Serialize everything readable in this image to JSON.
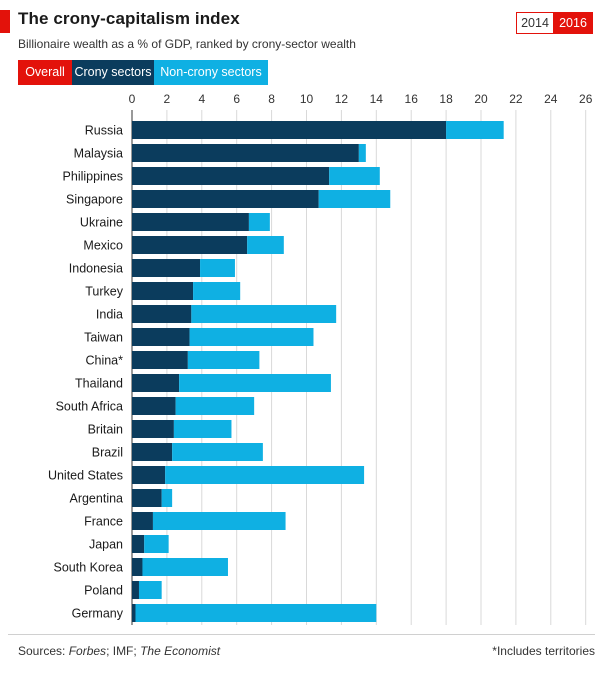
{
  "header": {
    "title": "The crony-capitalism index",
    "subtitle": "Billionaire wealth as a % of GDP, ranked by crony-sector wealth"
  },
  "year_toggle": {
    "options": [
      "2014",
      "2016"
    ],
    "selected": "2016"
  },
  "tabs": {
    "overall": "Overall",
    "crony": "Crony sectors",
    "noncrony": "Non-crony sectors"
  },
  "colors": {
    "accent": "#e3120b",
    "crony": "#0b3c5d",
    "noncrony": "#0fb0e3",
    "grid": "#d9d9d9"
  },
  "chart_data": {
    "type": "bar",
    "orientation": "horizontal",
    "stacked": true,
    "title": "The crony-capitalism index",
    "subtitle": "Billionaire wealth as a % of GDP, ranked by crony-sector wealth",
    "x_ticks": [
      "0",
      "2",
      "4",
      "6",
      "8",
      "10",
      "12",
      "14",
      "16",
      "18",
      "20",
      "22",
      "24",
      "26"
    ],
    "xlim": [
      0,
      26
    ],
    "grid": true,
    "categories": [
      "Russia",
      "Malaysia",
      "Philippines",
      "Singapore",
      "Ukraine",
      "Mexico",
      "Indonesia",
      "Turkey",
      "India",
      "Taiwan",
      "China*",
      "Thailand",
      "South Africa",
      "Britain",
      "Brazil",
      "United States",
      "Argentina",
      "France",
      "Japan",
      "South Korea",
      "Poland",
      "Germany"
    ],
    "series": [
      {
        "name": "Crony sectors",
        "values": [
          18.0,
          13.0,
          11.3,
          10.7,
          6.7,
          6.6,
          3.9,
          3.5,
          3.4,
          3.3,
          3.2,
          2.7,
          2.5,
          2.4,
          2.3,
          1.9,
          1.7,
          1.2,
          0.7,
          0.6,
          0.4,
          0.2
        ]
      },
      {
        "name": "Non-crony sectors",
        "values": [
          3.3,
          0.4,
          2.9,
          4.1,
          1.2,
          2.1,
          2.0,
          2.7,
          8.3,
          7.1,
          4.1,
          8.7,
          4.5,
          3.3,
          5.2,
          11.4,
          0.6,
          7.6,
          1.4,
          4.9,
          1.3,
          13.8
        ]
      }
    ]
  },
  "footer": {
    "sources_label": "Sources:",
    "source_forbes": "Forbes",
    "source_sep1": "; IMF; ",
    "source_economist": "The Economist",
    "footnote": "*Includes territories"
  }
}
